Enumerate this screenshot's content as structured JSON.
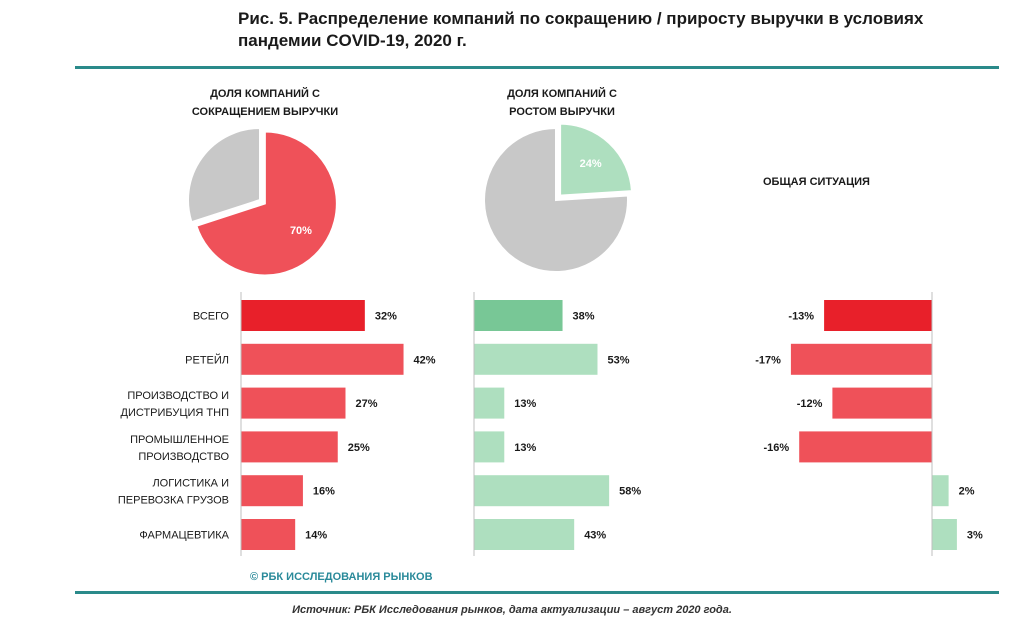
{
  "figure_title": "Рис. 5. Распределение компаний по сокращению / приросту выручки в условиях пандемии COVID-19, 2020 г.",
  "source_note": "Источник: РБК Исследования рынков, дата актуализации – август 2020 года.",
  "copyright": "© РБК ИССЛЕДОВАНИЯ РЫНКОВ",
  "colors": {
    "rule": "#2a8a8a",
    "decline_strong": "#e8202a",
    "decline": "#ef5159",
    "growth_strong": "#78c796",
    "growth": "#aedfbf",
    "pie_rest": "#c8c8c8"
  },
  "chart_data": [
    {
      "type": "pie",
      "title": "ДОЛЯ КОМПАНИЙ С СОКРАЩЕНИЕМ ВЫРУЧКИ",
      "slices": [
        {
          "label": "70%",
          "value": 70,
          "highlight": true
        },
        {
          "label": "",
          "value": 30,
          "highlight": false
        }
      ]
    },
    {
      "type": "pie",
      "title": "ДОЛЯ КОМПАНИЙ С РОСТОМ ВЫРУЧКИ",
      "slices": [
        {
          "label": "24%",
          "value": 24,
          "highlight": true
        },
        {
          "label": "",
          "value": 76,
          "highlight": false
        }
      ]
    },
    {
      "type": "bar",
      "orientation": "horizontal",
      "categories": [
        "ВСЕГО",
        "РЕТЕЙЛ",
        "ПРОИЗВОДСТВО И ДИСТРИБУЦИЯ ТНП",
        "ПРОМЫШЛЕННОЕ ПРОИЗВОДСТВО",
        "ЛОГИСТИКА И ПЕРЕВОЗКА ГРУЗОВ",
        "ФАРМАЦЕВТИКА"
      ],
      "category_lines": [
        [
          "ВСЕГО"
        ],
        [
          "РЕТЕЙЛ"
        ],
        [
          "ПРОИЗВОДСТВО И",
          "ДИСТРИБУЦИЯ ТНП"
        ],
        [
          "ПРОМЫШЛЕННОЕ",
          "ПРОИЗВОДСТВО"
        ],
        [
          "ЛОГИСТИКА И",
          "ПЕРЕВОЗКА ГРУЗОВ"
        ],
        [
          "ФАРМАЦЕВТИКА"
        ]
      ],
      "series": [
        {
          "values": [
            32,
            42,
            27,
            25,
            16,
            14
          ],
          "labels": [
            "32%",
            "42%",
            "27%",
            "25%",
            "16%",
            "14%"
          ]
        },
        {
          "values": [
            38,
            53,
            13,
            13,
            58,
            43
          ],
          "labels": [
            "38%",
            "53%",
            "13%",
            "13%",
            "58%",
            "43%"
          ]
        },
        {
          "name": "ОБЩАЯ СИТУАЦИЯ",
          "values": [
            -13,
            -17,
            -12,
            -16,
            2,
            3
          ],
          "labels": [
            "-13%",
            "-17%",
            "-12%",
            "-16%",
            "2%",
            "3%"
          ]
        }
      ]
    }
  ]
}
